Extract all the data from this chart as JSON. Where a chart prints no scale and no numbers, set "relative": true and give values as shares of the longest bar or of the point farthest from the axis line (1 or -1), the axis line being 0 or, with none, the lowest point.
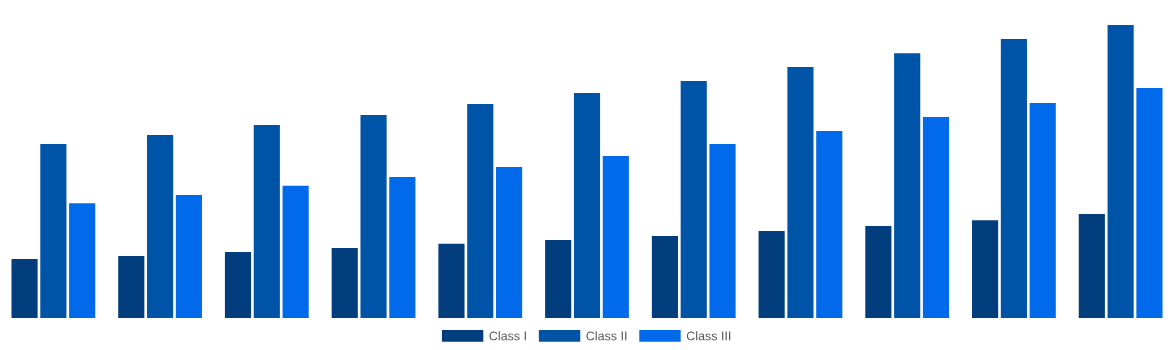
{
  "chart_data": {
    "type": "bar",
    "relative": true,
    "legend": "bottom",
    "grid": false,
    "categories": [
      null,
      null,
      null,
      null,
      null,
      null,
      null,
      null,
      null,
      null,
      null
    ],
    "series": [
      {
        "name": "Class I",
        "color": "#023e7d",
        "values": [
          0.201,
          0.212,
          0.225,
          0.239,
          0.253,
          0.266,
          0.28,
          0.297,
          0.314,
          0.334,
          0.355
        ]
      },
      {
        "name": "Class II",
        "color": "#0054a8",
        "values": [
          0.594,
          0.625,
          0.659,
          0.693,
          0.73,
          0.768,
          0.809,
          0.857,
          0.904,
          0.952,
          1
        ]
      },
      {
        "name": "Class III",
        "color": "#006aeb",
        "values": [
          0.392,
          0.42,
          0.451,
          0.481,
          0.515,
          0.553,
          0.594,
          0.638,
          0.686,
          0.734,
          0.785
        ]
      }
    ]
  }
}
